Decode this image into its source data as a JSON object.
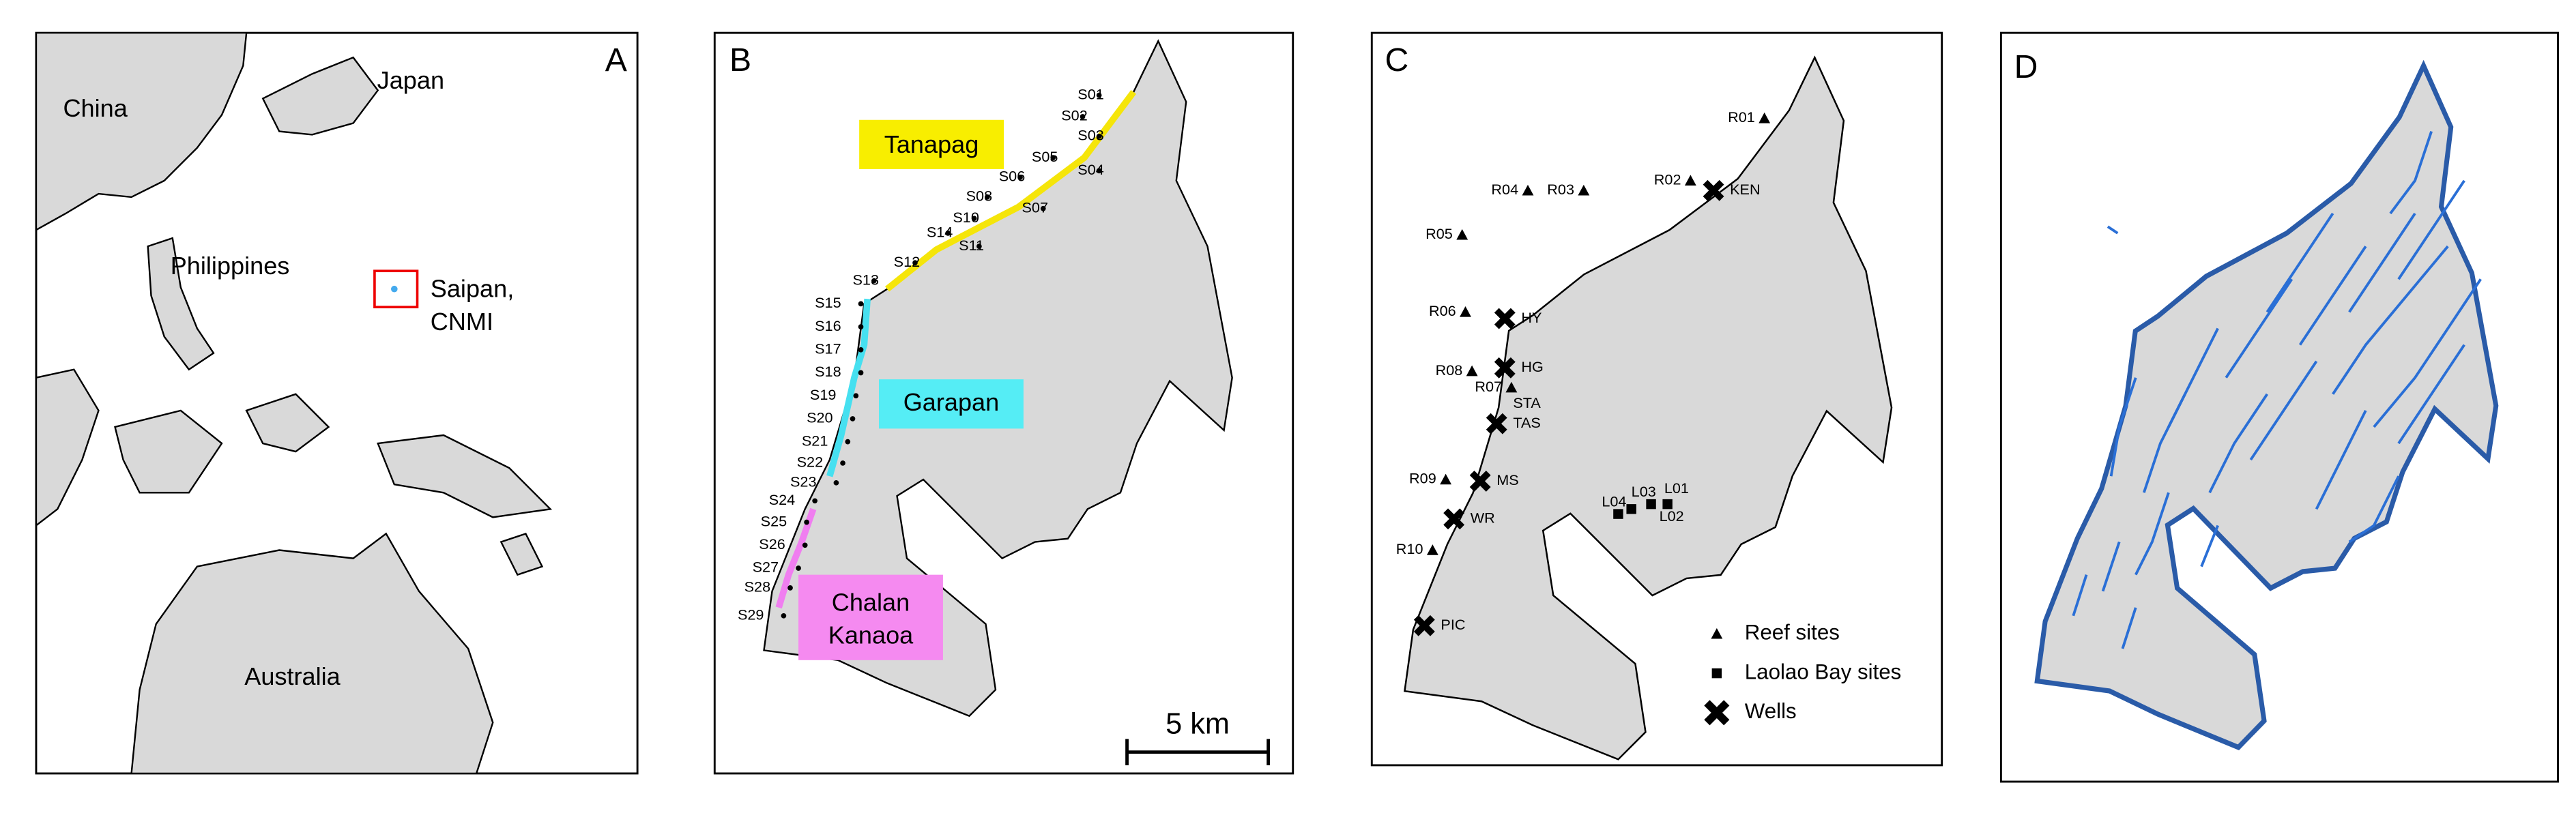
{
  "panels": [
    {
      "letter": "A",
      "places": [
        "China",
        "Japan",
        "Philippines",
        "Saipan,",
        "CNMI",
        "Australia"
      ]
    },
    {
      "letter": "B",
      "regions": [
        "Tanapag",
        "Garapan",
        "Chalan",
        "Kanaoa"
      ],
      "sites": [
        "S01",
        "S02",
        "S03",
        "S05",
        "S06",
        "S04",
        "S07",
        "S08",
        "S10",
        "S14",
        "S11",
        "S12",
        "S13",
        "S15",
        "S16",
        "S17",
        "S18",
        "S19",
        "S20",
        "S21",
        "S22",
        "S23",
        "S24",
        "S25",
        "S26",
        "S27",
        "S28",
        "S29"
      ],
      "scale": "5 km"
    },
    {
      "letter": "C",
      "reef_sites": [
        "R01",
        "R02",
        "R03",
        "R04",
        "R05",
        "R06",
        "R08",
        "R07",
        "R09",
        "R10"
      ],
      "wells": [
        "KEN",
        "HY",
        "HG",
        "STA",
        "TAS",
        "MS",
        "WR",
        "PIC"
      ],
      "laolao_sites": [
        "L01",
        "L03",
        "L04",
        "L02"
      ],
      "legend": [
        "Reef sites",
        "Laolao Bay sites",
        "Wells"
      ]
    },
    {
      "letter": "D"
    }
  ]
}
